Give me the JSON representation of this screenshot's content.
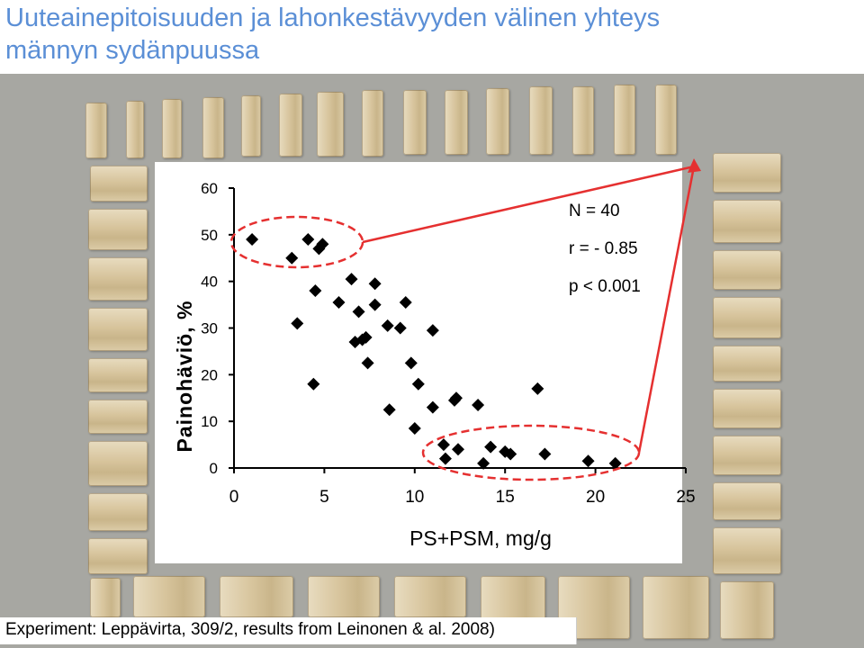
{
  "slide": {
    "title_line1": "Uuteainepitoisuuden ja lahonkestävyyden välinen yhteys",
    "title_line2": "männyn sydänpuussa",
    "caption": "Experiment: Leppävirta, 309/2, results from Leinonen & al. 2008)"
  },
  "colors": {
    "title": "#5b8fd6",
    "annotation": "#e53030",
    "marker": "#000000",
    "frame": "#a7a7a2"
  },
  "chart_data": {
    "type": "scatter",
    "xlabel": "PS+PSM, mg/g",
    "ylabel": "Painohäviö, %",
    "xlim": [
      0,
      25
    ],
    "ylim": [
      0,
      60
    ],
    "xticks": [
      0,
      5,
      10,
      15,
      20,
      25
    ],
    "yticks": [
      0,
      10,
      20,
      30,
      40,
      50,
      60
    ],
    "marker": "diamond",
    "grid": false,
    "annotations": [
      "N = 40",
      "r = - 0.85",
      "p < 0.001"
    ],
    "points": [
      {
        "x": 1.0,
        "y": 49.0
      },
      {
        "x": 3.2,
        "y": 45.0
      },
      {
        "x": 4.1,
        "y": 49.0
      },
      {
        "x": 4.7,
        "y": 47.0
      },
      {
        "x": 4.9,
        "y": 48.0
      },
      {
        "x": 3.5,
        "y": 31.0
      },
      {
        "x": 4.5,
        "y": 38.0
      },
      {
        "x": 4.4,
        "y": 18.0
      },
      {
        "x": 5.8,
        "y": 35.5
      },
      {
        "x": 6.5,
        "y": 40.5
      },
      {
        "x": 6.7,
        "y": 27.0
      },
      {
        "x": 6.9,
        "y": 33.5
      },
      {
        "x": 7.1,
        "y": 27.5
      },
      {
        "x": 7.3,
        "y": 28.0
      },
      {
        "x": 7.4,
        "y": 22.5
      },
      {
        "x": 7.8,
        "y": 39.5
      },
      {
        "x": 7.8,
        "y": 35.0
      },
      {
        "x": 8.5,
        "y": 30.5
      },
      {
        "x": 9.2,
        "y": 30.0
      },
      {
        "x": 9.5,
        "y": 35.5
      },
      {
        "x": 9.8,
        "y": 22.5
      },
      {
        "x": 10.2,
        "y": 18.0
      },
      {
        "x": 8.6,
        "y": 12.5
      },
      {
        "x": 10.0,
        "y": 8.5
      },
      {
        "x": 11.0,
        "y": 29.5
      },
      {
        "x": 11.0,
        "y": 13.0
      },
      {
        "x": 12.2,
        "y": 14.5
      },
      {
        "x": 12.3,
        "y": 15.0
      },
      {
        "x": 13.5,
        "y": 13.5
      },
      {
        "x": 16.8,
        "y": 17.0
      },
      {
        "x": 11.6,
        "y": 5.0
      },
      {
        "x": 11.7,
        "y": 2.0
      },
      {
        "x": 12.4,
        "y": 4.0
      },
      {
        "x": 13.8,
        "y": 1.0
      },
      {
        "x": 14.2,
        "y": 4.5
      },
      {
        "x": 15.0,
        "y": 3.5
      },
      {
        "x": 15.3,
        "y": 3.0
      },
      {
        "x": 17.2,
        "y": 3.0
      },
      {
        "x": 19.6,
        "y": 1.5
      },
      {
        "x": 21.1,
        "y": 1.0
      }
    ]
  }
}
